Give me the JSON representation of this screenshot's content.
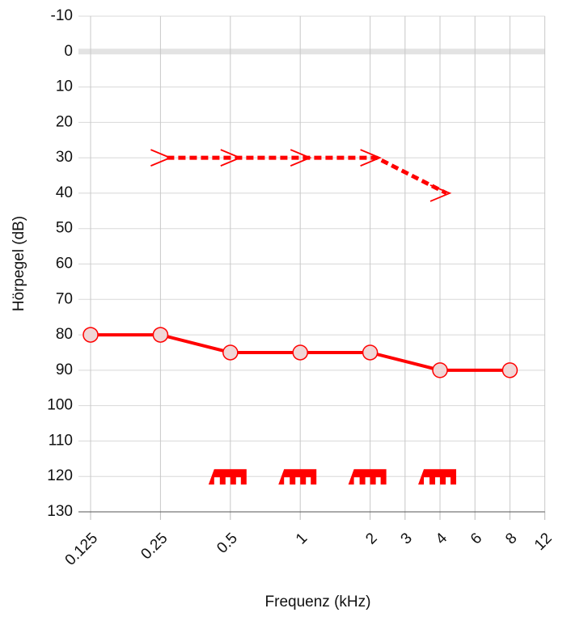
{
  "chart_data": {
    "type": "audiogram",
    "y_label": "Hörpegel (dB)",
    "x_label": "Frequenz (kHz)",
    "xlim": [
      0.125,
      12
    ],
    "xticks": [
      0.125,
      0.25,
      0.5,
      1,
      2,
      3,
      4,
      6,
      8,
      12
    ],
    "ylim": [
      -10,
      130
    ],
    "yticks": [
      -10,
      0,
      10,
      20,
      30,
      40,
      50,
      60,
      70,
      80,
      90,
      100,
      110,
      120,
      130
    ],
    "y_inverted": true,
    "grid": true,
    "series": [
      {
        "marker": "circle",
        "color": "#ff0000",
        "line": "solid",
        "x": [
          0.125,
          0.25,
          0.5,
          1,
          2,
          4,
          8
        ],
        "values": [
          80,
          80,
          85,
          85,
          85,
          90,
          90
        ]
      },
      {
        "marker": "arrow",
        "color": "#ff0000",
        "line": "dashed",
        "x": [
          0.25,
          0.5,
          1,
          2,
          4
        ],
        "values": [
          30,
          30,
          30,
          30,
          40
        ]
      },
      {
        "marker": "comb",
        "color": "#ff0000",
        "line": "none",
        "x": [
          0.5,
          1,
          2,
          4
        ],
        "values": [
          120,
          120,
          120,
          120
        ]
      }
    ]
  }
}
